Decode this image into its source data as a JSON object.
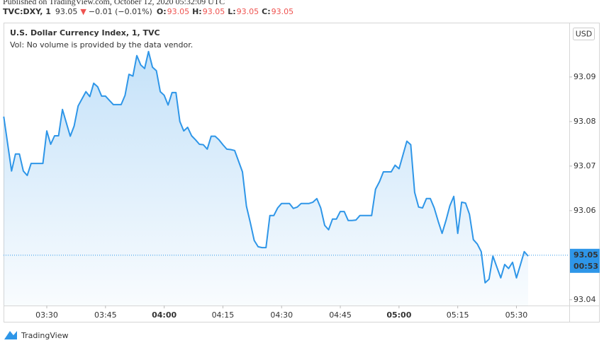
{
  "header": {
    "published": "Published on TradingView.com, October 12, 2020 05:32:09 UTC",
    "symbol": "TVC:DXY, 1",
    "price": "93.05",
    "arrow": "▼",
    "change": "−0.01 (−0.01%)",
    "ohlc": [
      {
        "key": "O:",
        "value": "93.05"
      },
      {
        "key": "H:",
        "value": "93.05"
      },
      {
        "key": "L:",
        "value": "93.05"
      },
      {
        "key": "C:",
        "value": "93.05"
      }
    ]
  },
  "chart_data": {
    "type": "area",
    "title": "U.S. Dollar Currency Index, 1, TVC",
    "subtitle": "Vol: No volume is provided by the data vendor.",
    "y_axis_label": "USD",
    "color": "#2e96e8",
    "x": [
      199,
      201,
      202,
      203,
      204,
      205,
      206,
      209,
      210,
      211,
      212,
      213,
      214,
      216,
      217,
      218,
      220,
      221,
      222,
      223,
      224,
      225,
      227,
      229,
      230,
      231,
      232,
      233,
      234,
      235,
      236,
      237,
      238,
      239,
      240,
      241,
      242,
      243,
      244,
      245,
      246,
      247,
      248,
      249,
      250,
      251,
      252,
      253,
      254,
      255,
      256,
      257,
      258,
      259,
      260,
      261,
      262,
      263,
      264,
      265,
      266,
      267,
      268,
      269,
      270,
      271,
      272,
      273,
      274,
      275,
      276,
      277,
      278,
      279,
      280,
      281,
      282,
      283,
      284,
      285,
      286,
      287,
      288,
      289,
      290,
      291,
      292,
      293,
      294,
      295,
      296,
      297,
      298,
      299,
      300,
      301,
      302,
      303,
      304,
      305,
      306,
      307,
      308,
      309,
      310,
      311,
      312,
      313,
      314,
      315,
      316,
      317,
      318,
      319,
      320,
      321,
      322,
      323,
      324,
      325,
      326,
      327,
      328,
      329,
      330,
      331,
      332,
      333
    ],
    "values": [
      93.0811,
      93.0689,
      93.0727,
      93.0727,
      93.0689,
      93.0679,
      93.0706,
      93.0706,
      93.0779,
      93.0749,
      93.0768,
      93.0768,
      93.0827,
      93.0767,
      93.079,
      93.0835,
      93.0867,
      93.0856,
      93.0886,
      93.0878,
      93.0857,
      93.0857,
      93.0838,
      93.0838,
      93.0859,
      93.0906,
      93.0902,
      93.0948,
      93.0927,
      93.0919,
      93.0957,
      93.0922,
      93.0914,
      93.0867,
      93.0859,
      93.0837,
      93.0865,
      93.0865,
      93.08,
      93.0779,
      93.0787,
      93.0768,
      93.0759,
      93.0749,
      93.0748,
      93.0738,
      93.0767,
      93.0767,
      93.0759,
      93.0748,
      93.0738,
      93.0737,
      93.0735,
      93.0711,
      93.0687,
      93.061,
      93.0573,
      93.0533,
      93.0519,
      93.0517,
      93.0517,
      93.0589,
      93.0589,
      93.0606,
      93.0616,
      93.0616,
      93.0616,
      93.0605,
      93.0608,
      93.0616,
      93.0616,
      93.0616,
      93.0619,
      93.0627,
      93.0606,
      93.0567,
      93.0557,
      93.0581,
      93.0581,
      93.0598,
      93.0598,
      93.0578,
      93.0578,
      93.0579,
      93.0589,
      93.0589,
      93.0589,
      93.0589,
      93.0648,
      93.0665,
      93.0687,
      93.0687,
      93.0687,
      93.0702,
      93.0694,
      93.0725,
      93.0756,
      93.0748,
      93.0641,
      93.0608,
      93.0606,
      93.0627,
      93.0627,
      93.0606,
      93.0576,
      93.0549,
      93.0578,
      93.0611,
      93.0632,
      93.0549,
      93.0619,
      93.0617,
      93.0592,
      93.0535,
      93.0525,
      93.0508,
      93.0438,
      93.0446,
      93.0498,
      93.0473,
      93.0449,
      93.0479,
      93.047,
      93.0484,
      93.0449,
      93.0478,
      93.0508,
      93.0498
    ],
    "xlim": [
      198.95,
      343.5
    ],
    "xticks": [
      {
        "value": 210,
        "label": "03:30"
      },
      {
        "value": 225,
        "label": "03:45"
      },
      {
        "value": 240,
        "label": "04:00"
      },
      {
        "value": 255,
        "label": "04:15"
      },
      {
        "value": 270,
        "label": "04:30"
      },
      {
        "value": 285,
        "label": "04:45"
      },
      {
        "value": 300,
        "label": "05:00"
      },
      {
        "value": 315,
        "label": "05:15"
      },
      {
        "value": 330,
        "label": "05:30"
      }
    ],
    "ylim": [
      93.0387,
      93.1022
    ],
    "yticks": [
      93.04,
      93.06,
      93.07,
      93.08,
      93.09
    ],
    "last_price": 93.05,
    "countdown": "00:53",
    "grid": false
  },
  "footer": {
    "brand": "TradingView"
  }
}
